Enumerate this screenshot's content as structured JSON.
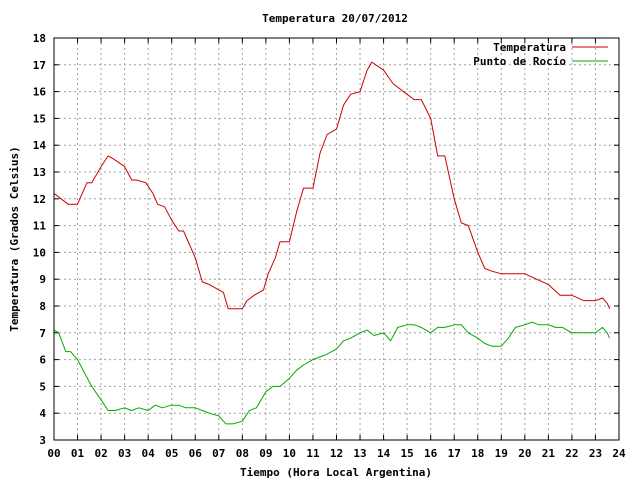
{
  "chart_data": {
    "type": "line",
    "title": "Temperatura 20/07/2012",
    "xlabel": "Tiempo (Hora Local Argentina)",
    "ylabel": "Temperatura (Grados Celsius)",
    "xlim": [
      0,
      24
    ],
    "ylim": [
      3,
      18
    ],
    "grid": true,
    "legend_position": "top-right",
    "x_ticks": [
      "00",
      "01",
      "02",
      "03",
      "04",
      "05",
      "06",
      "07",
      "08",
      "09",
      "10",
      "11",
      "12",
      "13",
      "14",
      "15",
      "16",
      "17",
      "18",
      "19",
      "20",
      "21",
      "22",
      "23",
      "24"
    ],
    "y_ticks": [
      "3",
      "4",
      "5",
      "6",
      "7",
      "8",
      "9",
      "10",
      "11",
      "12",
      "13",
      "14",
      "15",
      "16",
      "17",
      "18"
    ],
    "series": [
      {
        "name": "Temperatura",
        "color": "#cc0000",
        "x": [
          0.0,
          0.3,
          0.6,
          1.0,
          1.4,
          1.6,
          2.0,
          2.3,
          2.5,
          3.0,
          3.3,
          3.5,
          3.9,
          4.2,
          4.4,
          4.7,
          5.0,
          5.3,
          5.5,
          6.0,
          6.3,
          6.6,
          7.0,
          7.2,
          7.4,
          7.6,
          8.0,
          8.2,
          8.5,
          8.9,
          9.1,
          9.4,
          9.6,
          10.0,
          10.3,
          10.6,
          11.0,
          11.3,
          11.6,
          12.0,
          12.3,
          12.6,
          13.0,
          13.3,
          13.5,
          14.0,
          14.4,
          15.0,
          15.3,
          15.6,
          16.0,
          16.3,
          16.6,
          17.0,
          17.3,
          17.6,
          18.0,
          18.3,
          18.6,
          19.0,
          19.5,
          20.0,
          20.5,
          21.0,
          21.5,
          22.0,
          22.5,
          23.0,
          23.3,
          23.5,
          23.6
        ],
        "y": [
          12.2,
          12.0,
          11.8,
          11.8,
          12.6,
          12.6,
          13.2,
          13.6,
          13.5,
          13.2,
          12.7,
          12.7,
          12.6,
          12.2,
          11.8,
          11.7,
          11.2,
          10.8,
          10.8,
          9.8,
          8.9,
          8.8,
          8.6,
          8.5,
          7.9,
          7.9,
          7.9,
          8.2,
          8.4,
          8.6,
          9.2,
          9.8,
          10.4,
          10.4,
          11.5,
          12.4,
          12.4,
          13.7,
          14.4,
          14.6,
          15.5,
          15.9,
          16.0,
          16.8,
          17.1,
          16.8,
          16.3,
          15.9,
          15.7,
          15.7,
          15.0,
          13.6,
          13.6,
          12.0,
          11.1,
          11.0,
          10.0,
          9.4,
          9.3,
          9.2,
          9.2,
          9.2,
          9.0,
          8.8,
          8.4,
          8.4,
          8.2,
          8.2,
          8.3,
          8.1,
          7.9
        ]
      },
      {
        "name": "Punto de Rocío",
        "color": "#00aa00",
        "x": [
          0.0,
          0.2,
          0.5,
          0.7,
          1.0,
          1.3,
          1.6,
          2.0,
          2.3,
          2.6,
          3.0,
          3.3,
          3.6,
          4.0,
          4.3,
          4.6,
          5.0,
          5.3,
          5.6,
          6.0,
          6.3,
          6.6,
          7.0,
          7.3,
          7.6,
          8.0,
          8.3,
          8.6,
          9.0,
          9.3,
          9.6,
          10.0,
          10.3,
          10.6,
          11.0,
          11.3,
          11.6,
          12.0,
          12.3,
          12.6,
          13.0,
          13.3,
          13.6,
          14.0,
          14.3,
          14.6,
          15.0,
          15.3,
          15.6,
          16.0,
          16.3,
          16.6,
          17.0,
          17.3,
          17.6,
          18.0,
          18.3,
          18.6,
          19.0,
          19.3,
          19.6,
          20.0,
          20.3,
          20.6,
          21.0,
          21.3,
          21.6,
          22.0,
          22.3,
          22.6,
          23.0,
          23.3,
          23.5,
          23.6
        ],
        "y": [
          7.1,
          7.0,
          6.3,
          6.3,
          6.0,
          5.5,
          5.0,
          4.5,
          4.1,
          4.1,
          4.2,
          4.1,
          4.2,
          4.1,
          4.3,
          4.2,
          4.3,
          4.3,
          4.2,
          4.2,
          4.1,
          4.0,
          3.9,
          3.6,
          3.6,
          3.7,
          4.1,
          4.2,
          4.8,
          5.0,
          5.0,
          5.3,
          5.6,
          5.8,
          6.0,
          6.1,
          6.2,
          6.4,
          6.7,
          6.8,
          7.0,
          7.1,
          6.9,
          7.0,
          6.7,
          7.2,
          7.3,
          7.3,
          7.2,
          7.0,
          7.2,
          7.2,
          7.3,
          7.3,
          7.0,
          6.8,
          6.6,
          6.5,
          6.5,
          6.8,
          7.2,
          7.3,
          7.4,
          7.3,
          7.3,
          7.2,
          7.2,
          7.0,
          7.0,
          7.0,
          7.0,
          7.2,
          7.0,
          6.8
        ]
      }
    ]
  }
}
